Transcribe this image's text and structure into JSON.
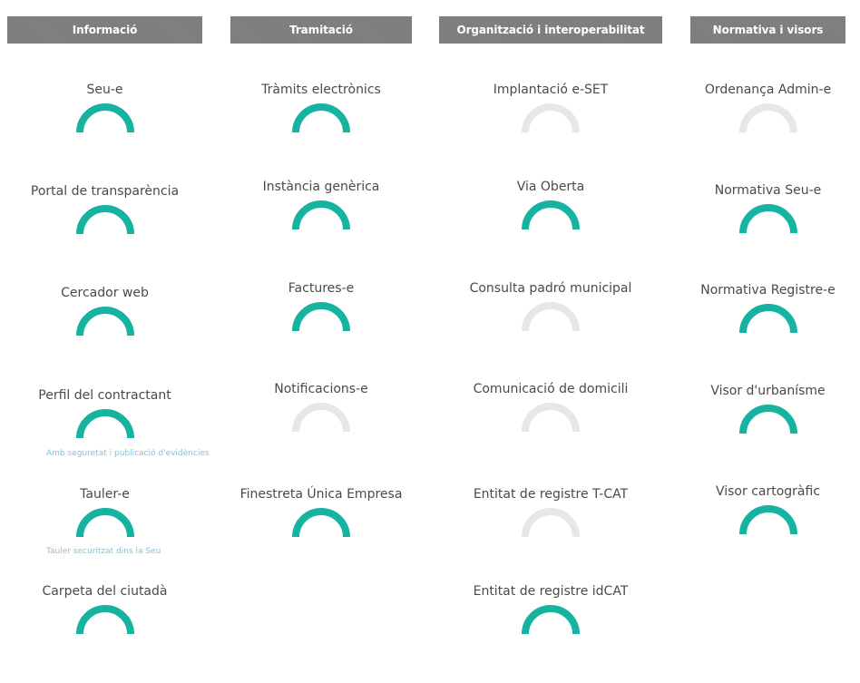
{
  "columns": {
    "informacio": {
      "title": "Informació",
      "items": [
        {
          "label": "Seu-e",
          "status": "active"
        },
        {
          "label": "Portal de transparència",
          "status": "active"
        },
        {
          "label": "Cercador web",
          "status": "active"
        },
        {
          "label": "Perfil del contractant",
          "status": "active",
          "note": "Amb seguretat i publicació d'evidències"
        },
        {
          "label": "Tauler-e",
          "status": "active",
          "note": "Tauler securitzat dins la Seu"
        },
        {
          "label": "Carpeta del ciutadà",
          "status": "active"
        }
      ]
    },
    "tramitacio": {
      "title": "Tramitació",
      "items": [
        {
          "label": "Tràmits electrònics",
          "status": "active"
        },
        {
          "label": "Instància genèrica",
          "status": "active"
        },
        {
          "label": "Factures-e",
          "status": "active"
        },
        {
          "label": "Notificacions-e",
          "status": "inactive"
        },
        {
          "label": "Finestreta Única Empresa",
          "status": "active"
        }
      ]
    },
    "organitzacio": {
      "title": "Organització i interoperabilitat",
      "items": [
        {
          "label": "Implantació e-SET",
          "status": "inactive"
        },
        {
          "label": "Via Oberta",
          "status": "active"
        },
        {
          "label": "Consulta padró municipal",
          "status": "inactive"
        },
        {
          "label": "Comunicació de domicili",
          "status": "inactive"
        },
        {
          "label": "Entitat de registre T-CAT",
          "status": "inactive"
        },
        {
          "label": "Entitat de registre idCAT",
          "status": "active"
        }
      ]
    },
    "normativa": {
      "title": "Normativa i visors",
      "items": [
        {
          "label": "Ordenança Admin-e",
          "status": "inactive"
        },
        {
          "label": "Normativa Seu-e",
          "status": "active"
        },
        {
          "label": "Normativa Registre-e",
          "status": "active"
        },
        {
          "label": "Visor d'urbanísme",
          "status": "active"
        },
        {
          "label": "Visor cartogràfic",
          "status": "active"
        }
      ]
    }
  },
  "colors": {
    "active": "#16b3a0",
    "inactive": "#e7e7e7",
    "header_bg": "#7c7c7c",
    "note": "#7fc3df"
  }
}
